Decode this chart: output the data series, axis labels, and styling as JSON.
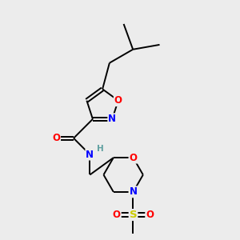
{
  "background_color": "#ececec",
  "bond_color": "#000000",
  "atom_colors": {
    "O": "#ff0000",
    "N": "#0000ff",
    "S": "#cccc00",
    "C": "#000000",
    "H": "#5fa0a0"
  },
  "figsize": [
    3.0,
    3.0
  ],
  "dpi": 100
}
